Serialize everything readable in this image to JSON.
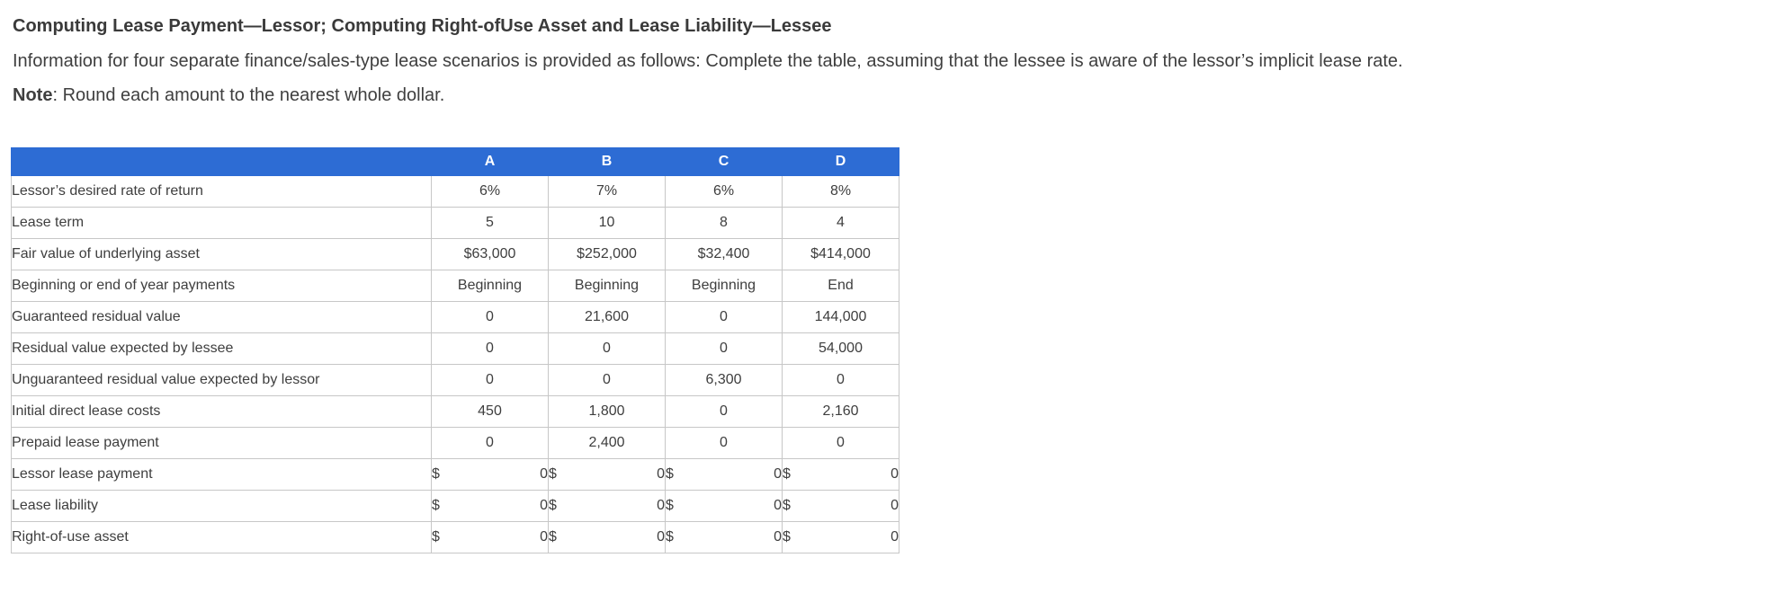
{
  "page": {
    "title": "Computing Lease Payment—Lessor; Computing Right-ofUse Asset and Lease Liability—Lessee",
    "instructions": "Information for four separate finance/sales-type lease scenarios is provided as follows: Complete the table, assuming that the lessee is aware of the lessor’s implicit lease rate.",
    "note_label": "Note",
    "note_text": ": Round each amount to the nearest whole dollar."
  },
  "colors": {
    "header_bg": "#2d6cd4",
    "header_text": "#ffffff",
    "answer_cell_bg": "#ececec",
    "border": "#c7c7c7",
    "text": "#3e3e3e"
  },
  "table": {
    "column_headers": [
      "A",
      "B",
      "C",
      "D"
    ],
    "currency_symbol": "$",
    "rows": [
      {
        "label": "Lessor’s desired rate of return",
        "type": "static",
        "values": [
          "6%",
          "7%",
          "6%",
          "8%"
        ]
      },
      {
        "label": "Lease term",
        "type": "static",
        "values": [
          "5",
          "10",
          "8",
          "4"
        ]
      },
      {
        "label": "Fair value of underlying asset",
        "type": "static",
        "values": [
          "$63,000",
          "$252,000",
          "$32,400",
          "$414,000"
        ]
      },
      {
        "label": "Beginning or end of year payments",
        "type": "static",
        "values": [
          "Beginning",
          "Beginning",
          "Beginning",
          "End"
        ]
      },
      {
        "label": "Guaranteed residual value",
        "type": "static",
        "values": [
          "0",
          "21,600",
          "0",
          "144,000"
        ]
      },
      {
        "label": "Residual value expected by lessee",
        "type": "static",
        "values": [
          "0",
          "0",
          "0",
          "54,000"
        ]
      },
      {
        "label": "Unguaranteed residual value expected by lessor",
        "type": "static",
        "values": [
          "0",
          "0",
          "6,300",
          "0"
        ]
      },
      {
        "label": "Initial direct lease costs",
        "type": "static",
        "values": [
          "450",
          "1,800",
          "0",
          "2,160"
        ]
      },
      {
        "label": "Prepaid lease payment",
        "type": "static",
        "values": [
          "0",
          "2,400",
          "0",
          "0"
        ]
      },
      {
        "label": "Lessor lease payment",
        "type": "answer",
        "values": [
          "0",
          "0",
          "0",
          "0"
        ]
      },
      {
        "label": "Lease liability",
        "type": "answer",
        "values": [
          "0",
          "0",
          "0",
          "0"
        ]
      },
      {
        "label": "Right-of-use asset",
        "type": "answer",
        "values": [
          "0",
          "0",
          "0",
          "0"
        ]
      }
    ]
  }
}
